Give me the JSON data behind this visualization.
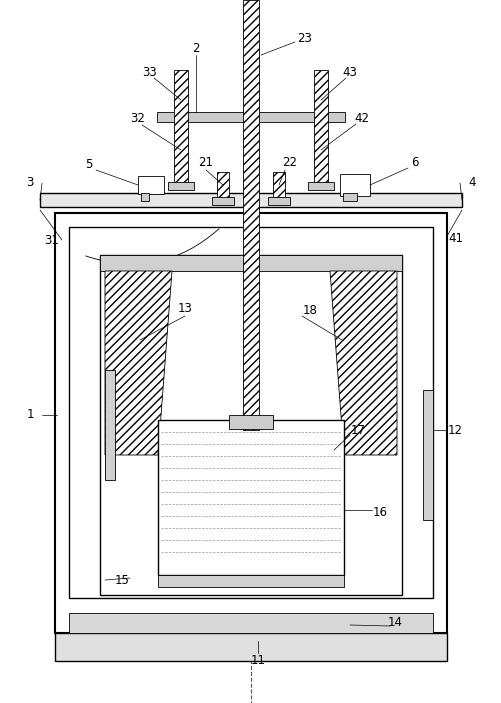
{
  "bg_color": "#ffffff",
  "lc": "#000000",
  "fig_w": 5.02,
  "fig_h": 7.03,
  "dpi": 100
}
